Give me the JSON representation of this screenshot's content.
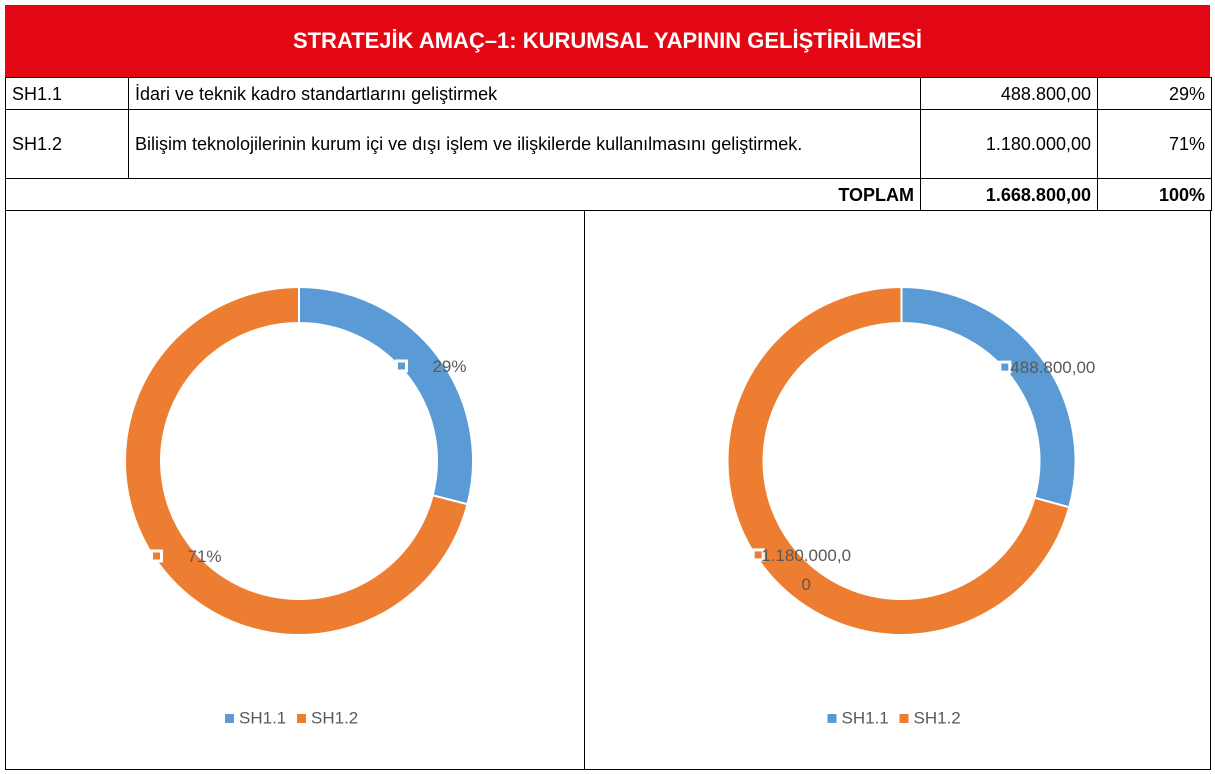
{
  "header": {
    "title": "STRATEJİK AMAÇ–1: KURUMSAL YAPININ GELİŞTİRİLMESİ"
  },
  "table": {
    "rows": [
      [
        "SH1.1",
        "İdari ve teknik kadro standartlarını geliştirmek",
        "488.800,00",
        "29%"
      ],
      [
        "SH1.2",
        "Bilişim teknolojilerinin kurum içi ve dışı işlem ve ilişkilerde kullanılmasını geliştirmek.",
        "1.180.000,00",
        "71%"
      ]
    ],
    "total": [
      "TOPLAM",
      "1.668.800,00",
      "100%"
    ]
  },
  "charts": [
    {
      "type": "donut",
      "categories": [
        "SH1.1",
        "SH1.2"
      ],
      "values": [
        29,
        71
      ],
      "value_labels": [
        "29%",
        "71%"
      ],
      "colors": [
        "#5b9bd5",
        "#ed7d31"
      ]
    },
    {
      "type": "donut",
      "categories": [
        "SH1.1",
        "SH1.2"
      ],
      "values": [
        488800,
        1180000
      ],
      "value_labels": [
        "488.800,00",
        "1.180.000,00"
      ],
      "colors": [
        "#5b9bd5",
        "#ed7d31"
      ]
    }
  ]
}
